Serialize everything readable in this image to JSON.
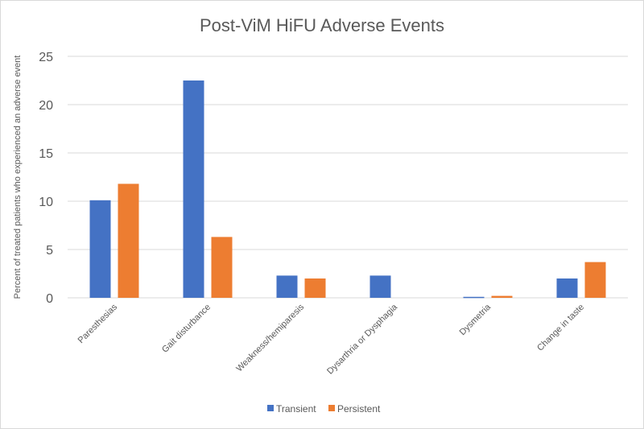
{
  "chart_data": {
    "type": "bar",
    "title": "Post-ViM HiFU Adverse Events",
    "xlabel": "",
    "ylabel": "Percent of treated patients who experienced an adverse event",
    "ylim": [
      0,
      25
    ],
    "yticks": [
      "0",
      "5",
      "10",
      "15",
      "20",
      "25"
    ],
    "grid": true,
    "legend_position": "bottom",
    "categories": [
      "Paresthesias",
      "Gait disturbance",
      "Weakness/hemiparesis",
      "Dysarthria or Dysphagia",
      "Dysmetria",
      "Change in taste"
    ],
    "series": [
      {
        "name": "Transient",
        "color": "#4472c4",
        "values": [
          10.1,
          22.5,
          2.3,
          2.3,
          0.1,
          2.0
        ]
      },
      {
        "name": "Persistent",
        "color": "#ed7d31",
        "values": [
          11.8,
          6.3,
          2.0,
          0,
          0.2,
          3.7
        ]
      }
    ]
  }
}
